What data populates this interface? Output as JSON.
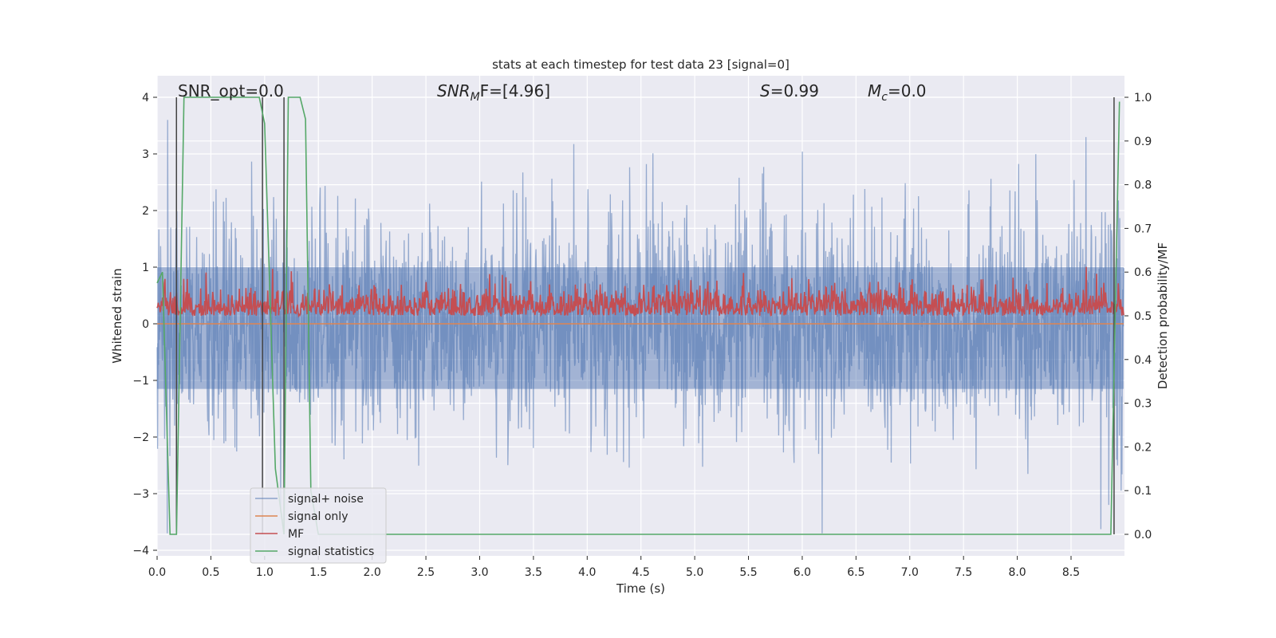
{
  "chart_data": {
    "type": "line",
    "title": "stats at each timestep for test data 23 [signal=0]",
    "xlabel": "Time (s)",
    "ylabel": "Whitened strain",
    "y2label": "Detection probability/MF",
    "xlim": [
      0.0,
      9.0
    ],
    "ylim": [
      -4.2,
      4.4
    ],
    "y2lim": [
      -0.045,
      1.045
    ],
    "x_ticks": [
      0.0,
      0.5,
      1.0,
      1.5,
      2.0,
      2.5,
      3.0,
      3.5,
      4.0,
      4.5,
      5.0,
      5.5,
      6.0,
      6.5,
      7.0,
      7.5,
      8.0,
      8.5
    ],
    "x_tick_labels": [
      "0.0",
      "0.5",
      "1.0",
      "1.5",
      "2.0",
      "2.5",
      "3.0",
      "3.5",
      "4.0",
      "4.5",
      "5.0",
      "5.5",
      "6.0",
      "6.5",
      "7.0",
      "7.5",
      "8.0",
      "8.5"
    ],
    "y_ticks": [
      -4,
      -3,
      -2,
      -1,
      0,
      1,
      2,
      3,
      4
    ],
    "y_tick_labels": [
      "−4",
      "−3",
      "−2",
      "−1",
      "0",
      "1",
      "2",
      "3",
      "4"
    ],
    "y2_ticks": [
      0.0,
      0.1,
      0.2,
      0.3,
      0.4,
      0.5,
      0.6,
      0.7,
      0.8,
      0.9,
      1.0
    ],
    "y2_tick_labels": [
      "0.0",
      "0.1",
      "0.2",
      "0.3",
      "0.4",
      "0.5",
      "0.6",
      "0.7",
      "0.8",
      "0.9",
      "1.0"
    ],
    "grid": true,
    "legend_placement": "lower-left",
    "annotations": {
      "snr_opt": "SNR_opt=0.0",
      "snr_mf_base": "SNR",
      "snr_mf_sub": "M",
      "snr_mf_rest": "F=[4.96]",
      "s_stat_var": "S",
      "s_stat_rest": "=0.99",
      "mc_var": "M",
      "mc_sub": "c",
      "mc_rest": "=0.0"
    },
    "series": [
      {
        "name": "signal+ noise",
        "color": "#4c72b0",
        "axis": "left",
        "style": "dense noise band, approx. between -2.0 and +2.0 with spikes up to about 3.6 and down to about -3.7"
      },
      {
        "name": "signal only",
        "color": "#dd8452",
        "axis": "left",
        "values_note": "flat at 0"
      },
      {
        "name": "MF",
        "color": "#c44e52",
        "axis": "right",
        "style": "noisy trace roughly between 0.49 and 0.6 with peaks near 0.61"
      },
      {
        "name": "signal statistics",
        "color": "#55a868",
        "axis": "right",
        "points": [
          [
            0.0,
            0.575
          ],
          [
            0.05,
            0.6
          ],
          [
            0.12,
            0.0
          ],
          [
            0.18,
            0.0
          ],
          [
            0.25,
            1.0
          ],
          [
            0.95,
            1.0
          ],
          [
            1.0,
            0.94
          ],
          [
            1.1,
            0.15
          ],
          [
            1.18,
            0.0
          ],
          [
            1.22,
            1.0
          ],
          [
            1.33,
            1.0
          ],
          [
            1.38,
            0.95
          ],
          [
            1.43,
            0.1
          ],
          [
            1.5,
            0.0
          ],
          [
            8.87,
            0.0
          ],
          [
            8.91,
            0.5
          ],
          [
            8.95,
            0.99
          ]
        ]
      }
    ],
    "vertical_markers": [
      0.18,
      0.98,
      1.18,
      8.9
    ],
    "vertical_marker_color": "#444444"
  }
}
